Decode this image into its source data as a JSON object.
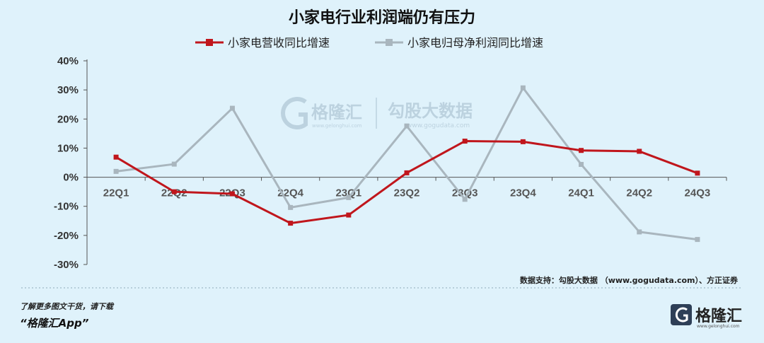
{
  "chart_data": {
    "type": "line",
    "title": "小家电行业利润端仍有压力",
    "categories": [
      "22Q1",
      "22Q2",
      "22Q3",
      "22Q4",
      "23Q1",
      "23Q2",
      "23Q3",
      "23Q4",
      "24Q1",
      "24Q2",
      "24Q3"
    ],
    "ylim": [
      -30,
      40
    ],
    "yticks": [
      40,
      30,
      20,
      10,
      0,
      -10,
      -20,
      -30
    ],
    "ytick_labels": [
      "40%",
      "30%",
      "20%",
      "10%",
      "0%",
      "-10%",
      "-20%",
      "-30%"
    ],
    "grid": false,
    "legend_position": "top",
    "series": [
      {
        "name": "小家电营收同比增速",
        "color": "#c0161c",
        "values": [
          6.9,
          -5.0,
          -5.7,
          -15.8,
          -13.0,
          1.5,
          12.4,
          12.2,
          9.2,
          8.9,
          1.4
        ]
      },
      {
        "name": "小家电归母净利润同比增速",
        "color": "#a9b6be",
        "values": [
          2.0,
          4.5,
          23.7,
          -10.4,
          -7.0,
          17.6,
          -7.6,
          30.7,
          4.4,
          -18.8,
          -21.4
        ]
      }
    ]
  },
  "source": "数据支持：勾股大数据 （www.gogudata.com）、方正证券",
  "footer": {
    "line1": "了解更多图文干货，请下载",
    "line2": "“格隆汇App”"
  },
  "watermark": {
    "brand": "格隆汇",
    "brand_sub": "www.gelonghui.com",
    "partner": "勾股大数据",
    "partner_sub": "www.gogudata.com"
  },
  "logo": {
    "brand": "格隆汇",
    "brand_sub": "www.gelonghui.com"
  }
}
